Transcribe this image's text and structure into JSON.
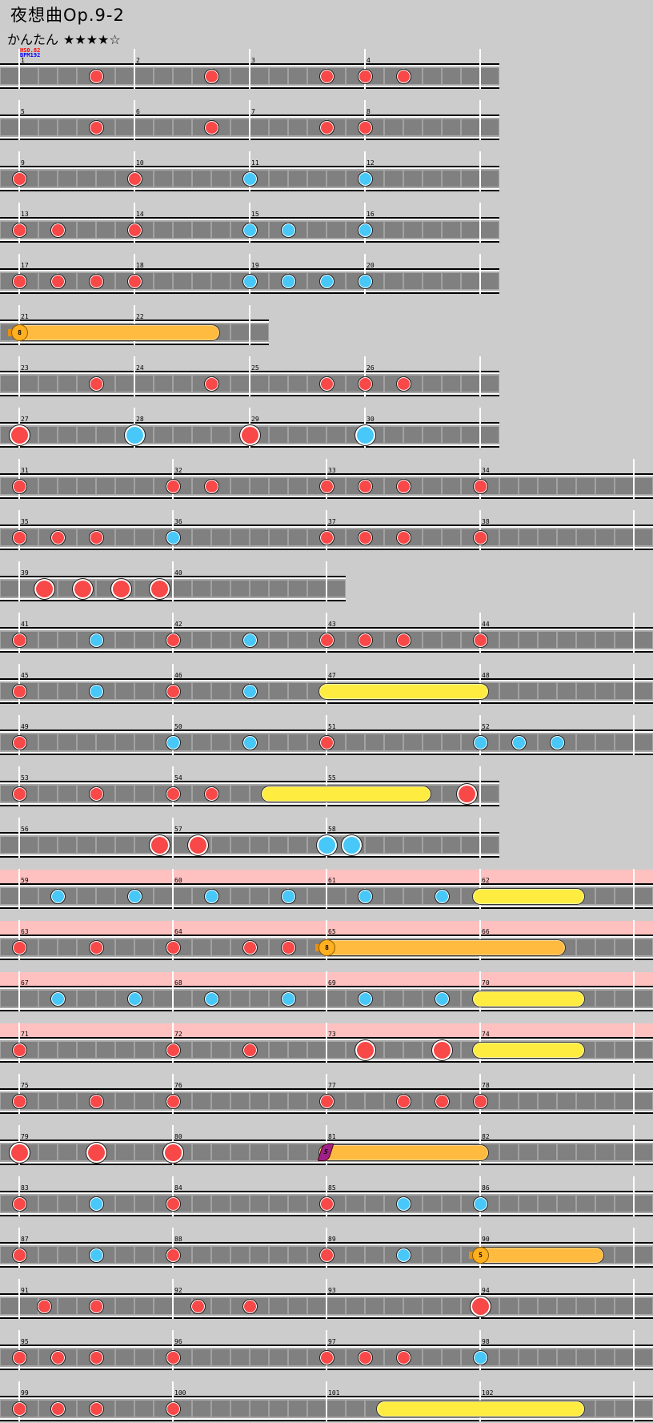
{
  "header": {
    "title": "夜想曲Op.9-2",
    "difficulty": "かんたん",
    "stars": "★★★★☆",
    "level": 4,
    "level_max": 5,
    "hs": "HS0.82",
    "bpm": "BPM192"
  },
  "colors": {
    "background": "#cccccc",
    "lane": "#808080",
    "don": "#f84848",
    "ka": "#48c8f8",
    "roll": "#ffec40",
    "balloon": "#ffbb40",
    "kusudama": "#a0208a",
    "gogo": "#ffc0c0",
    "hs": "#ff0000",
    "bpm": "#0000ff"
  },
  "rows": [
    {
      "measures": [
        1,
        2,
        3,
        4
      ],
      "grid": 6,
      "notes": [
        {
          "m": 1,
          "p": 4,
          "t": "don"
        },
        {
          "m": 2,
          "p": 4,
          "t": "don"
        },
        {
          "m": 3,
          "p": 4,
          "t": "don"
        },
        {
          "m": 4,
          "p": 0,
          "t": "don"
        },
        {
          "m": 4,
          "p": 2,
          "t": "don"
        }
      ]
    },
    {
      "measures": [
        5,
        6,
        7,
        8
      ],
      "grid": 6,
      "notes": [
        {
          "m": 5,
          "p": 4,
          "t": "don"
        },
        {
          "m": 6,
          "p": 4,
          "t": "don"
        },
        {
          "m": 7,
          "p": 4,
          "t": "don"
        },
        {
          "m": 8,
          "p": 0,
          "t": "don"
        }
      ]
    },
    {
      "measures": [
        9,
        10,
        11,
        12
      ],
      "grid": 6,
      "notes": [
        {
          "m": 9,
          "p": 0,
          "t": "don"
        },
        {
          "m": 10,
          "p": 0,
          "t": "don"
        },
        {
          "m": 11,
          "p": 0,
          "t": "ka"
        },
        {
          "m": 12,
          "p": 0,
          "t": "ka"
        }
      ]
    },
    {
      "measures": [
        13,
        14,
        15,
        16
      ],
      "grid": 6,
      "notes": [
        {
          "m": 13,
          "p": 0,
          "t": "don"
        },
        {
          "m": 13,
          "p": 2,
          "t": "don"
        },
        {
          "m": 14,
          "p": 0,
          "t": "don"
        },
        {
          "m": 15,
          "p": 0,
          "t": "ka"
        },
        {
          "m": 15,
          "p": 2,
          "t": "ka"
        },
        {
          "m": 16,
          "p": 0,
          "t": "ka"
        }
      ]
    },
    {
      "measures": [
        17,
        18,
        19,
        20
      ],
      "grid": 6,
      "notes": [
        {
          "m": 17,
          "p": 0,
          "t": "don"
        },
        {
          "m": 17,
          "p": 2,
          "t": "don"
        },
        {
          "m": 17,
          "p": 4,
          "t": "don"
        },
        {
          "m": 18,
          "p": 0,
          "t": "don"
        },
        {
          "m": 19,
          "p": 0,
          "t": "ka"
        },
        {
          "m": 19,
          "p": 2,
          "t": "ka"
        },
        {
          "m": 19,
          "p": 4,
          "t": "ka"
        },
        {
          "m": 20,
          "p": 0,
          "t": "ka"
        }
      ]
    },
    {
      "measures": [
        21,
        22
      ],
      "grid": 6,
      "notes": [
        {
          "m": 21,
          "p": 0,
          "t": "balloon",
          "em": 22,
          "ep": 4,
          "n": "8"
        }
      ]
    },
    {
      "measures": [
        23,
        24,
        25,
        26
      ],
      "grid": 6,
      "notes": [
        {
          "m": 23,
          "p": 4,
          "t": "don"
        },
        {
          "m": 24,
          "p": 4,
          "t": "don"
        },
        {
          "m": 25,
          "p": 4,
          "t": "don"
        },
        {
          "m": 26,
          "p": 0,
          "t": "don"
        },
        {
          "m": 26,
          "p": 2,
          "t": "don"
        }
      ]
    },
    {
      "measures": [
        27,
        28,
        29,
        30
      ],
      "grid": 6,
      "notes": [
        {
          "m": 27,
          "p": 0,
          "t": "DON"
        },
        {
          "m": 28,
          "p": 0,
          "t": "KA"
        },
        {
          "m": 29,
          "p": 0,
          "t": "DON"
        },
        {
          "m": 30,
          "p": 0,
          "t": "KA"
        }
      ]
    },
    {
      "measures": [
        31,
        32,
        33,
        34
      ],
      "grid": 8,
      "notes": [
        {
          "m": 31,
          "p": 0,
          "t": "don"
        },
        {
          "m": 32,
          "p": 0,
          "t": "don"
        },
        {
          "m": 32,
          "p": 2,
          "t": "don"
        },
        {
          "m": 33,
          "p": 0,
          "t": "don"
        },
        {
          "m": 33,
          "p": 2,
          "t": "don"
        },
        {
          "m": 33,
          "p": 4,
          "t": "don"
        },
        {
          "m": 34,
          "p": 0,
          "t": "don"
        }
      ]
    },
    {
      "measures": [
        35,
        36,
        37,
        38
      ],
      "grid": 8,
      "notes": [
        {
          "m": 35,
          "p": 0,
          "t": "don"
        },
        {
          "m": 35,
          "p": 2,
          "t": "don"
        },
        {
          "m": 35,
          "p": 4,
          "t": "don"
        },
        {
          "m": 36,
          "p": 0,
          "t": "ka"
        },
        {
          "m": 37,
          "p": 0,
          "t": "don"
        },
        {
          "m": 37,
          "p": 2,
          "t": "don"
        },
        {
          "m": 37,
          "p": 4,
          "t": "don"
        },
        {
          "m": 38,
          "p": 0,
          "t": "don"
        }
      ]
    },
    {
      "measures": [
        39,
        40
      ],
      "grid": 8,
      "notes": [
        {
          "m": 39,
          "p": 1.333,
          "t": "DON"
        },
        {
          "m": 39,
          "p": 3.333,
          "t": "DON"
        },
        {
          "m": 39,
          "p": 5.333,
          "t": "DON"
        },
        {
          "m": 39,
          "p": 7.333,
          "t": "DON"
        }
      ]
    },
    {
      "measures": [
        41,
        42,
        43,
        44
      ],
      "grid": 8,
      "notes": [
        {
          "m": 41,
          "p": 0,
          "t": "don"
        },
        {
          "m": 41,
          "p": 4,
          "t": "ka"
        },
        {
          "m": 42,
          "p": 0,
          "t": "don"
        },
        {
          "m": 42,
          "p": 4,
          "t": "ka"
        },
        {
          "m": 43,
          "p": 0,
          "t": "don"
        },
        {
          "m": 43,
          "p": 2,
          "t": "don"
        },
        {
          "m": 43,
          "p": 4,
          "t": "don"
        },
        {
          "m": 44,
          "p": 0,
          "t": "don"
        }
      ]
    },
    {
      "measures": [
        45,
        46,
        47,
        48
      ],
      "grid": 8,
      "notes": [
        {
          "m": 45,
          "p": 0,
          "t": "don"
        },
        {
          "m": 45,
          "p": 4,
          "t": "ka"
        },
        {
          "m": 46,
          "p": 0,
          "t": "don"
        },
        {
          "m": 46,
          "p": 4,
          "t": "ka"
        },
        {
          "m": 47,
          "p": 0,
          "t": "roll",
          "em": 48,
          "ep": 0
        }
      ]
    },
    {
      "measures": [
        49,
        50,
        51,
        52
      ],
      "grid": 8,
      "notes": [
        {
          "m": 49,
          "p": 0,
          "t": "don"
        },
        {
          "m": 50,
          "p": 0,
          "t": "ka"
        },
        {
          "m": 50,
          "p": 4,
          "t": "ka"
        },
        {
          "m": 51,
          "p": 0,
          "t": "don"
        },
        {
          "m": 52,
          "p": 0,
          "t": "ka"
        },
        {
          "m": 52,
          "p": 2,
          "t": "ka"
        },
        {
          "m": 52,
          "p": 4,
          "t": "ka"
        }
      ]
    },
    {
      "measures": [
        53,
        54,
        55
      ],
      "grid": 8,
      "notes": [
        {
          "m": 53,
          "p": 0,
          "t": "don"
        },
        {
          "m": 53,
          "p": 4,
          "t": "don"
        },
        {
          "m": 54,
          "p": 0,
          "t": "don"
        },
        {
          "m": 54,
          "p": 2,
          "t": "don"
        },
        {
          "m": 54,
          "p": 5,
          "t": "roll",
          "em": 55,
          "ep": 5
        },
        {
          "m": 55,
          "p": 7.333,
          "t": "DON"
        }
      ]
    },
    {
      "measures": [
        56,
        57,
        58
      ],
      "grid": 8,
      "notes": [
        {
          "m": 56,
          "p": 7.333,
          "t": "DON"
        },
        {
          "m": 57,
          "p": 1.333,
          "t": "DON"
        },
        {
          "m": 58,
          "p": 0,
          "t": "KA"
        },
        {
          "m": 58,
          "p": 1.333,
          "t": "KA"
        }
      ]
    },
    {
      "measures": [
        59,
        60,
        61,
        62
      ],
      "grid": 8,
      "gogo": true,
      "notes": [
        {
          "m": 59,
          "p": 2,
          "t": "ka"
        },
        {
          "m": 59,
          "p": 6,
          "t": "ka"
        },
        {
          "m": 60,
          "p": 2,
          "t": "ka"
        },
        {
          "m": 60,
          "p": 6,
          "t": "ka"
        },
        {
          "m": 61,
          "p": 2,
          "t": "ka"
        },
        {
          "m": 61,
          "p": 6,
          "t": "ka"
        },
        {
          "m": 62,
          "p": 0,
          "t": "roll",
          "em": 62,
          "ep": 5
        }
      ]
    },
    {
      "measures": [
        63,
        64,
        65,
        66
      ],
      "grid": 8,
      "gogo": true,
      "notes": [
        {
          "m": 63,
          "p": 0,
          "t": "don"
        },
        {
          "m": 63,
          "p": 4,
          "t": "don"
        },
        {
          "m": 64,
          "p": 0,
          "t": "don"
        },
        {
          "m": 64,
          "p": 4,
          "t": "don"
        },
        {
          "m": 64,
          "p": 6,
          "t": "don"
        },
        {
          "m": 65,
          "p": 0,
          "t": "balloon",
          "em": 66,
          "ep": 4,
          "n": "8"
        }
      ]
    },
    {
      "measures": [
        67,
        68,
        69,
        70
      ],
      "grid": 8,
      "gogo": true,
      "notes": [
        {
          "m": 67,
          "p": 2,
          "t": "ka"
        },
        {
          "m": 67,
          "p": 6,
          "t": "ka"
        },
        {
          "m": 68,
          "p": 2,
          "t": "ka"
        },
        {
          "m": 68,
          "p": 6,
          "t": "ka"
        },
        {
          "m": 69,
          "p": 2,
          "t": "ka"
        },
        {
          "m": 69,
          "p": 6,
          "t": "ka"
        },
        {
          "m": 70,
          "p": 0,
          "t": "roll",
          "em": 70,
          "ep": 5
        }
      ]
    },
    {
      "measures": [
        71,
        72,
        73,
        74
      ],
      "grid": 8,
      "gogo": true,
      "notes": [
        {
          "m": 71,
          "p": 0,
          "t": "don"
        },
        {
          "m": 72,
          "p": 0,
          "t": "don"
        },
        {
          "m": 72,
          "p": 4,
          "t": "don"
        },
        {
          "m": 73,
          "p": 2,
          "t": "DON"
        },
        {
          "m": 73,
          "p": 6,
          "t": "DON"
        },
        {
          "m": 74,
          "p": 0,
          "t": "roll",
          "em": 74,
          "ep": 5
        }
      ]
    },
    {
      "measures": [
        75,
        76,
        77,
        78
      ],
      "grid": 8,
      "notes": [
        {
          "m": 75,
          "p": 0,
          "t": "don"
        },
        {
          "m": 75,
          "p": 4,
          "t": "don"
        },
        {
          "m": 76,
          "p": 0,
          "t": "don"
        },
        {
          "m": 77,
          "p": 0,
          "t": "don"
        },
        {
          "m": 77,
          "p": 4,
          "t": "don"
        },
        {
          "m": 77,
          "p": 6,
          "t": "don"
        },
        {
          "m": 78,
          "p": 0,
          "t": "don"
        }
      ]
    },
    {
      "measures": [
        79,
        80,
        81,
        82
      ],
      "grid": 8,
      "notes": [
        {
          "m": 79,
          "p": 0,
          "t": "DON"
        },
        {
          "m": 79,
          "p": 4,
          "t": "DON"
        },
        {
          "m": 80,
          "p": 0,
          "t": "DON"
        },
        {
          "m": 81,
          "p": 0,
          "t": "kusudama",
          "em": 82,
          "ep": 0,
          "n": "5"
        }
      ]
    },
    {
      "measures": [
        83,
        84,
        85,
        86
      ],
      "grid": 8,
      "notes": [
        {
          "m": 83,
          "p": 0,
          "t": "don"
        },
        {
          "m": 83,
          "p": 4,
          "t": "ka"
        },
        {
          "m": 84,
          "p": 0,
          "t": "don"
        },
        {
          "m": 85,
          "p": 0,
          "t": "don"
        },
        {
          "m": 85,
          "p": 4,
          "t": "ka"
        },
        {
          "m": 86,
          "p": 0,
          "t": "ka"
        }
      ]
    },
    {
      "measures": [
        87,
        88,
        89,
        90
      ],
      "grid": 8,
      "notes": [
        {
          "m": 87,
          "p": 0,
          "t": "don"
        },
        {
          "m": 87,
          "p": 4,
          "t": "ka"
        },
        {
          "m": 88,
          "p": 0,
          "t": "don"
        },
        {
          "m": 89,
          "p": 0,
          "t": "don"
        },
        {
          "m": 89,
          "p": 4,
          "t": "ka"
        },
        {
          "m": 90,
          "p": 0,
          "t": "balloon",
          "em": 90,
          "ep": 6,
          "n": "5"
        }
      ]
    },
    {
      "measures": [
        91,
        92,
        93,
        94
      ],
      "grid": 8,
      "notes": [
        {
          "m": 91,
          "p": 1.333,
          "t": "don"
        },
        {
          "m": 91,
          "p": 4,
          "t": "don"
        },
        {
          "m": 92,
          "p": 1.333,
          "t": "don"
        },
        {
          "m": 92,
          "p": 4,
          "t": "don"
        },
        {
          "m": 94,
          "p": 0,
          "t": "DON"
        }
      ]
    },
    {
      "measures": [
        95,
        96,
        97,
        98
      ],
      "grid": 8,
      "notes": [
        {
          "m": 95,
          "p": 0,
          "t": "don"
        },
        {
          "m": 95,
          "p": 2,
          "t": "don"
        },
        {
          "m": 95,
          "p": 4,
          "t": "don"
        },
        {
          "m": 96,
          "p": 0,
          "t": "don"
        },
        {
          "m": 97,
          "p": 0,
          "t": "don"
        },
        {
          "m": 97,
          "p": 2,
          "t": "don"
        },
        {
          "m": 97,
          "p": 4,
          "t": "don"
        },
        {
          "m": 98,
          "p": 0,
          "t": "ka"
        }
      ]
    },
    {
      "measures": [
        99,
        100,
        101,
        102
      ],
      "grid": 8,
      "notes": [
        {
          "m": 99,
          "p": 0,
          "t": "don"
        },
        {
          "m": 99,
          "p": 2,
          "t": "don"
        },
        {
          "m": 99,
          "p": 4,
          "t": "don"
        },
        {
          "m": 100,
          "p": 0,
          "t": "don"
        },
        {
          "m": 101,
          "p": 3,
          "t": "roll",
          "em": 102,
          "ep": 5
        }
      ]
    }
  ]
}
